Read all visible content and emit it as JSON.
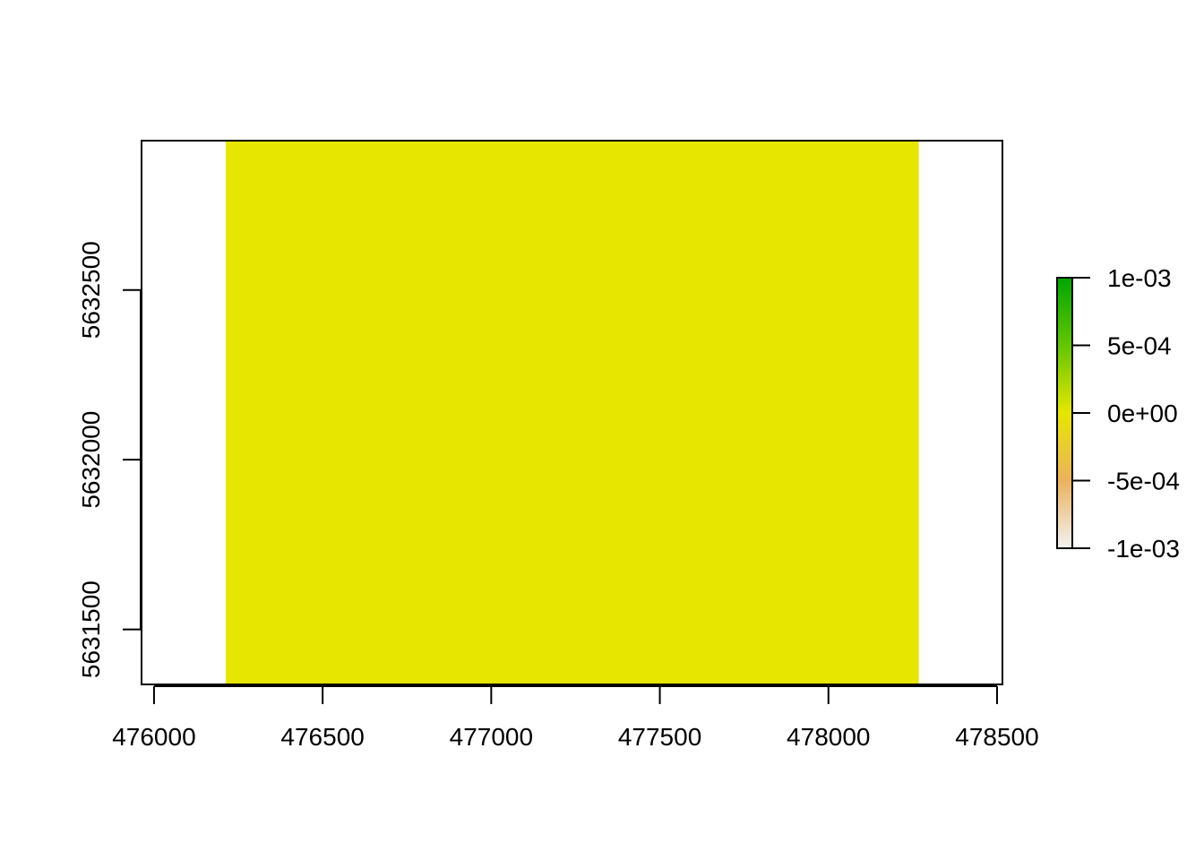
{
  "chart_data": {
    "type": "heatmap",
    "title": "",
    "xlabel": "",
    "ylabel": "",
    "xlim": [
      475963,
      478516
    ],
    "ylim": [
      5631338,
      5632940
    ],
    "x_ticks": [
      476000,
      476500,
      477000,
      477500,
      478000,
      478500
    ],
    "x_tick_labels": [
      "476000",
      "476500",
      "477000",
      "477500",
      "478000",
      "478500"
    ],
    "y_ticks": [
      5631500,
      5632000,
      5632500
    ],
    "y_tick_labels": [
      "5631500",
      "5632000",
      "5632500"
    ],
    "raster": {
      "x_range": [
        476213,
        478268
      ],
      "y_range": [
        5631338,
        5632940
      ],
      "value": 0,
      "color": "#e6e600"
    },
    "legend": {
      "placement": "right",
      "range": [
        -0.001,
        0.001
      ],
      "ticks": [
        0.001,
        0.0005,
        0,
        -0.0005,
        -0.001
      ],
      "tick_labels": [
        "1e-03",
        "5e-04",
        "0e+00",
        "-5e-04",
        "-1e-03"
      ],
      "color_stops": [
        {
          "value": -0.001,
          "color": "#f2f2f2"
        },
        {
          "value": -0.0005,
          "color": "#ebb25e"
        },
        {
          "value": 0,
          "color": "#e6e600"
        },
        {
          "value": 0.0005,
          "color": "#63c600"
        },
        {
          "value": 0.001,
          "color": "#00a600"
        }
      ]
    },
    "grid": false
  }
}
